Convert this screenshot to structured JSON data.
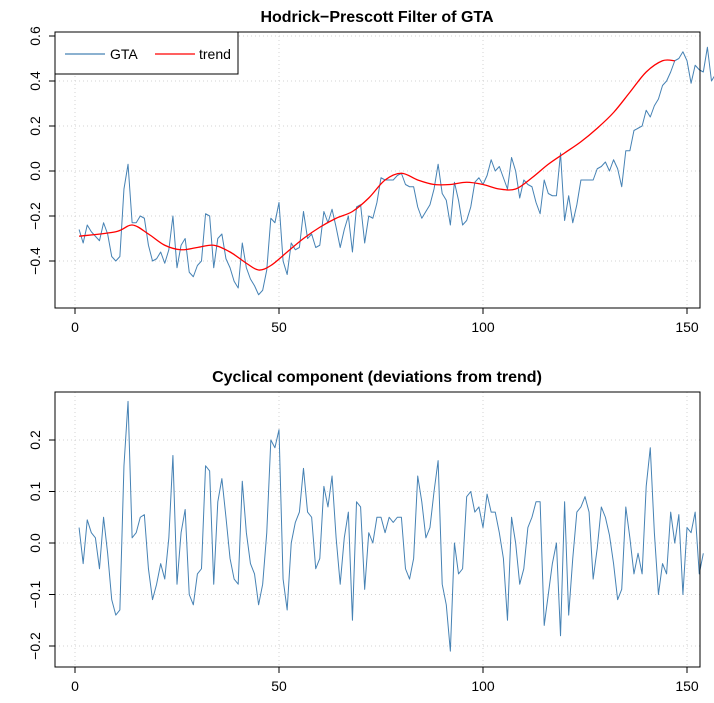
{
  "chart_data": [
    {
      "type": "line",
      "title": "Hodrick−Prescott Filter of GTA",
      "xlabel": "",
      "ylabel": "",
      "xlim": [
        0,
        150
      ],
      "ylim": [
        -0.6,
        0.6
      ],
      "xticks": [
        0,
        50,
        100,
        150
      ],
      "yticks": [
        -0.4,
        -0.2,
        0.0,
        0.2,
        0.4,
        0.6
      ],
      "ytick_labels": [
        "−0.4",
        "−0.2",
        "0.0",
        "0.2",
        "0.4",
        "0.6"
      ],
      "grid": true,
      "legend": {
        "position": "top-left",
        "entries": [
          "GTA",
          "trend"
        ]
      },
      "series": [
        {
          "name": "GTA",
          "color": "#4682b4",
          "x_start": 1,
          "values": [
            -0.26,
            -0.32,
            -0.24,
            -0.27,
            -0.29,
            -0.31,
            -0.23,
            -0.28,
            -0.38,
            -0.4,
            -0.38,
            -0.08,
            0.03,
            -0.23,
            -0.23,
            -0.2,
            -0.21,
            -0.33,
            -0.4,
            -0.39,
            -0.36,
            -0.41,
            -0.35,
            -0.2,
            -0.43,
            -0.33,
            -0.3,
            -0.45,
            -0.47,
            -0.42,
            -0.4,
            -0.19,
            -0.2,
            -0.43,
            -0.3,
            -0.28,
            -0.39,
            -0.43,
            -0.49,
            -0.52,
            -0.32,
            -0.43,
            -0.48,
            -0.51,
            -0.55,
            -0.53,
            -0.44,
            -0.21,
            -0.23,
            -0.14,
            -0.4,
            -0.46,
            -0.32,
            -0.35,
            -0.34,
            -0.18,
            -0.3,
            -0.28,
            -0.34,
            -0.33,
            -0.18,
            -0.23,
            -0.17,
            -0.25,
            -0.34,
            -0.26,
            -0.2,
            -0.36,
            -0.16,
            -0.15,
            -0.32,
            -0.2,
            -0.21,
            -0.14,
            -0.03,
            -0.04,
            -0.04,
            -0.04,
            -0.02,
            -0.01,
            -0.06,
            -0.07,
            -0.07,
            -0.16,
            -0.21,
            -0.18,
            -0.15,
            -0.08,
            0.03,
            -0.1,
            -0.13,
            -0.24,
            -0.05,
            -0.13,
            -0.24,
            -0.22,
            -0.16,
            -0.05,
            -0.03,
            -0.06,
            -0.02,
            0.05,
            0.0,
            0.02,
            -0.03,
            -0.08,
            0.06,
            0.0,
            -0.12,
            -0.04,
            -0.06,
            -0.07,
            -0.14,
            -0.19,
            -0.04,
            -0.1,
            -0.11,
            -0.11,
            0.08,
            -0.22,
            -0.11,
            -0.23,
            -0.15,
            -0.04,
            -0.04,
            -0.04,
            -0.04,
            0.01,
            0.02,
            0.04,
            0.0,
            0.05,
            0.01,
            -0.07,
            0.09,
            0.09,
            0.18,
            0.19,
            0.2,
            0.27,
            0.24,
            0.29,
            0.32,
            0.38,
            0.4,
            0.44,
            0.49,
            0.5,
            0.53,
            0.49,
            0.39,
            0.47,
            0.45,
            0.44,
            0.55,
            0.4,
            0.43,
            0.47
          ],
          "noise_note": ""
        },
        {
          "name": "trend",
          "color": "#ff0000",
          "points": [
            [
              1,
              -0.29
            ],
            [
              10,
              -0.27
            ],
            [
              14,
              -0.24
            ],
            [
              18,
              -0.28
            ],
            [
              22,
              -0.33
            ],
            [
              26,
              -0.35
            ],
            [
              30,
              -0.34
            ],
            [
              34,
              -0.33
            ],
            [
              38,
              -0.36
            ],
            [
              42,
              -0.41
            ],
            [
              45,
              -0.44
            ],
            [
              48,
              -0.42
            ],
            [
              52,
              -0.36
            ],
            [
              56,
              -0.3
            ],
            [
              60,
              -0.25
            ],
            [
              64,
              -0.21
            ],
            [
              68,
              -0.18
            ],
            [
              72,
              -0.12
            ],
            [
              76,
              -0.04
            ],
            [
              80,
              -0.01
            ],
            [
              84,
              -0.04
            ],
            [
              88,
              -0.06
            ],
            [
              92,
              -0.06
            ],
            [
              96,
              -0.05
            ],
            [
              100,
              -0.06
            ],
            [
              104,
              -0.08
            ],
            [
              108,
              -0.08
            ],
            [
              112,
              -0.03
            ],
            [
              116,
              0.03
            ],
            [
              120,
              0.08
            ],
            [
              124,
              0.13
            ],
            [
              128,
              0.19
            ],
            [
              132,
              0.26
            ],
            [
              136,
              0.35
            ],
            [
              140,
              0.44
            ],
            [
              144,
              0.49
            ],
            [
              147,
              0.49
            ]
          ]
        }
      ]
    },
    {
      "type": "line",
      "title": "Cyclical component (deviations from trend)",
      "xlabel": "",
      "ylabel": "",
      "xlim": [
        0,
        150
      ],
      "ylim": [
        -0.22,
        0.28
      ],
      "xticks": [
        0,
        50,
        100,
        150
      ],
      "yticks": [
        -0.2,
        -0.1,
        0.0,
        0.1,
        0.2
      ],
      "ytick_labels": [
        "−0.2",
        "−0.1",
        "0.0",
        "0.1",
        "0.2"
      ],
      "grid": true,
      "series": [
        {
          "color": "#4682b4",
          "x_start": 1,
          "values": [
            0.03,
            -0.04,
            0.045,
            0.02,
            0.01,
            -0.05,
            0.05,
            -0.02,
            -0.11,
            -0.14,
            -0.13,
            0.15,
            0.275,
            0.01,
            0.02,
            0.05,
            0.055,
            -0.05,
            -0.11,
            -0.08,
            -0.04,
            -0.07,
            0.01,
            0.17,
            -0.08,
            0.02,
            0.065,
            -0.1,
            -0.12,
            -0.06,
            -0.05,
            0.15,
            0.14,
            -0.08,
            0.08,
            0.125,
            0.05,
            -0.03,
            -0.07,
            -0.08,
            0.12,
            0.02,
            -0.04,
            -0.06,
            -0.12,
            -0.08,
            0.02,
            0.2,
            0.185,
            0.22,
            -0.07,
            -0.13,
            0.0,
            0.04,
            0.06,
            0.145,
            0.06,
            0.05,
            -0.05,
            -0.03,
            0.11,
            0.07,
            0.13,
            0.01,
            -0.08,
            0.01,
            0.06,
            -0.15,
            0.08,
            0.07,
            -0.09,
            0.02,
            0.0,
            0.05,
            0.05,
            0.02,
            0.05,
            0.04,
            0.05,
            0.05,
            -0.05,
            -0.07,
            -0.03,
            0.13,
            0.08,
            0.01,
            0.03,
            0.1,
            0.16,
            -0.08,
            -0.12,
            -0.21,
            0.0,
            -0.06,
            -0.05,
            0.09,
            0.1,
            0.06,
            0.07,
            0.03,
            0.095,
            0.06,
            0.06,
            0.02,
            -0.03,
            -0.15,
            0.05,
            0.0,
            -0.08,
            -0.05,
            0.03,
            0.05,
            0.08,
            0.08,
            -0.16,
            -0.1,
            -0.04,
            0.0,
            -0.18,
            0.08,
            -0.14,
            -0.03,
            0.06,
            0.07,
            0.09,
            0.06,
            -0.07,
            -0.01,
            0.07,
            0.05,
            0.015,
            -0.04,
            -0.11,
            -0.09,
            0.07,
            0.01,
            -0.06,
            -0.02,
            -0.06,
            0.11,
            0.185,
            0.02,
            -0.1,
            -0.04,
            -0.06,
            0.06,
            0.0,
            0.055,
            -0.1,
            0.03,
            0.02,
            0.06,
            -0.06,
            -0.02
          ]
        }
      ]
    }
  ],
  "legend_labels": {
    "gta": "GTA",
    "trend": "trend"
  }
}
